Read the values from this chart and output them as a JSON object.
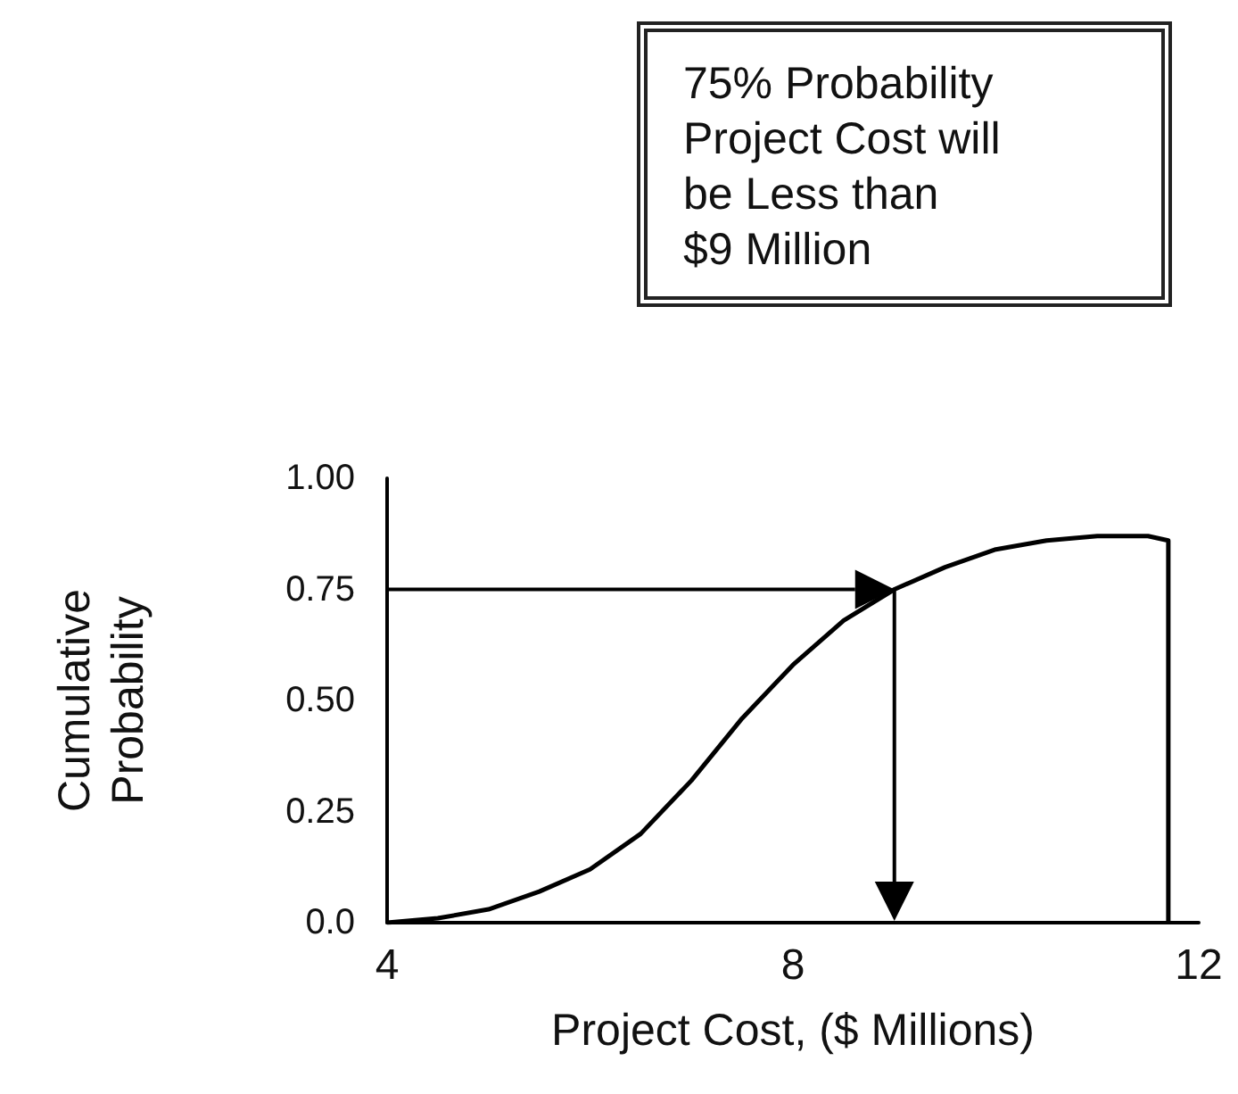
{
  "chart_data": {
    "type": "line",
    "xlabel": "Project Cost, ($ Millions)",
    "ylabel": "Cumulative Probability",
    "annotations": [
      "75% Probability\nProject Cost will\nbe Less than\n$9 Million"
    ],
    "ref_lines": [
      {
        "axis": "y",
        "value": 0.75,
        "color": "#000000"
      },
      {
        "axis": "x",
        "value": 9,
        "color": "#000000"
      }
    ],
    "series": [
      {
        "color": "#000000",
        "x": [
          4,
          4.5,
          5,
          5.5,
          6,
          6.5,
          7,
          7.5,
          8,
          8.5,
          9,
          9.5,
          10,
          10.5,
          11,
          11.5,
          11.7,
          11.7
        ],
        "values": [
          0,
          0.01,
          0.03,
          0.07,
          0.12,
          0.2,
          0.32,
          0.46,
          0.58,
          0.68,
          0.75,
          0.8,
          0.84,
          0.86,
          0.87,
          0.87,
          0.86,
          0
        ]
      }
    ],
    "xlim": [
      4,
      12
    ],
    "xticks": [
      4,
      8,
      12
    ],
    "ylim": [
      0,
      1
    ],
    "yticks": [
      {
        "value": 0,
        "label": "0.0"
      },
      {
        "value": 0.25,
        "label": "0.25"
      },
      {
        "value": 0.5,
        "label": "0.50"
      },
      {
        "value": 0.75,
        "label": "0.75"
      },
      {
        "value": 1,
        "label": "1.00"
      }
    ],
    "grid": false,
    "marker": "none",
    "line_style": "solid"
  }
}
